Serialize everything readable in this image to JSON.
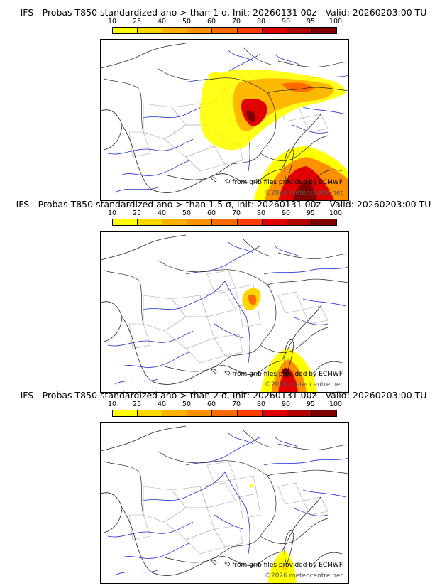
{
  "colorbar": {
    "ticks": [
      "10",
      "25",
      "40",
      "50",
      "60",
      "70",
      "80",
      "90",
      "95",
      "100"
    ],
    "colors": [
      "#ffff00",
      "#ffd700",
      "#ffb000",
      "#ff9000",
      "#ff6a00",
      "#ff3c00",
      "#e00000",
      "#b00000",
      "#800000"
    ]
  },
  "panels": [
    {
      "title": "IFS - Probas T850  standardized ano > than 1 σ, Init: 20260131 00z - Valid: 20260203:00 TU",
      "credit": "from grib files provided by ECMWF",
      "watermark": "©2026 meteocentre.net"
    },
    {
      "title": "IFS - Probas T850  standardized ano > than 1.5 σ, Init: 20260131 00z - Valid: 20260203:00 TU",
      "credit": "from grib files provided by ECMWF",
      "watermark": "©2026 meteocentre.net"
    },
    {
      "title": "IFS - Probas T850  standardized ano > than 2 σ, Init: 20260131 00z - Valid: 20260203:00 TU",
      "credit": "from grib files provided by ECMWF",
      "watermark": "©2026 meteocentre.net"
    }
  ]
}
